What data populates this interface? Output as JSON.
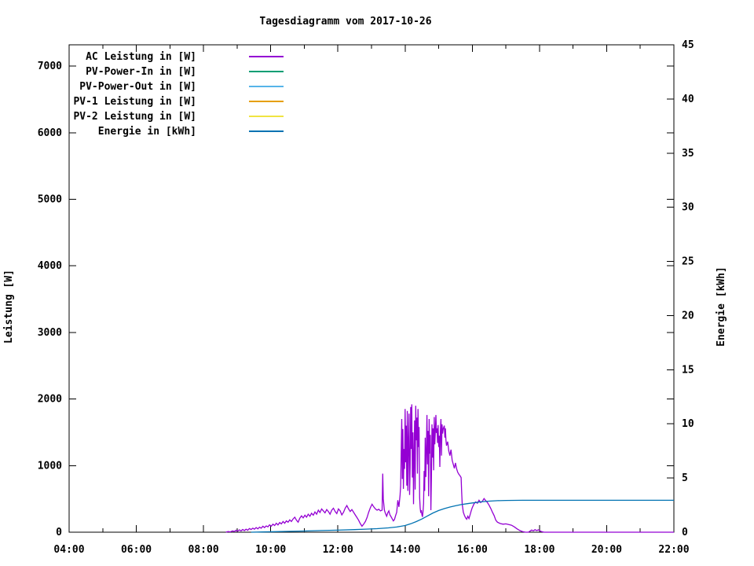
{
  "chart_data": {
    "type": "line",
    "title": "Tagesdiagramm vom 2017-10-26",
    "background_color": "#ffffff",
    "axis_color": "#000000",
    "grid": "off",
    "legend_position": "top-left-inside",
    "x_axis": {
      "unit": "time",
      "min_minutes": 240,
      "max_minutes": 1320,
      "major_step_minutes": 120,
      "minor_step_minutes": 60,
      "labels": [
        "04:00",
        "06:00",
        "08:00",
        "10:00",
        "12:00",
        "14:00",
        "16:00",
        "18:00",
        "20:00",
        "22:00"
      ]
    },
    "y_axis": {
      "label": "Leistung [W]",
      "min": 0,
      "max": 7320,
      "ticks": [
        0,
        1000,
        2000,
        3000,
        4000,
        5000,
        6000,
        7000
      ]
    },
    "y2_axis": {
      "label": "Energie [kWh]",
      "min": 0,
      "max": 45,
      "ticks": [
        0,
        5,
        10,
        15,
        20,
        25,
        30,
        35,
        40,
        45
      ]
    },
    "series": [
      {
        "name": "ac-leistung",
        "label": "AC Leistung in [W]",
        "color": "#9400d3",
        "axis": "y1",
        "points": [
          [
            520,
            0
          ],
          [
            524,
            10
          ],
          [
            528,
            5
          ],
          [
            532,
            20
          ],
          [
            535,
            10
          ],
          [
            538,
            30
          ],
          [
            541,
            15
          ],
          [
            544,
            35
          ],
          [
            547,
            20
          ],
          [
            550,
            40
          ],
          [
            553,
            25
          ],
          [
            556,
            45
          ],
          [
            559,
            30
          ],
          [
            562,
            55
          ],
          [
            565,
            40
          ],
          [
            568,
            60
          ],
          [
            571,
            45
          ],
          [
            574,
            70
          ],
          [
            577,
            50
          ],
          [
            580,
            75
          ],
          [
            583,
            60
          ],
          [
            586,
            90
          ],
          [
            589,
            70
          ],
          [
            592,
            95
          ],
          [
            595,
            80
          ],
          [
            598,
            110
          ],
          [
            601,
            90
          ],
          [
            604,
            120
          ],
          [
            607,
            100
          ],
          [
            610,
            135
          ],
          [
            613,
            110
          ],
          [
            616,
            145
          ],
          [
            619,
            125
          ],
          [
            622,
            160
          ],
          [
            625,
            135
          ],
          [
            628,
            170
          ],
          [
            631,
            150
          ],
          [
            634,
            185
          ],
          [
            637,
            160
          ],
          [
            640,
            200
          ],
          [
            643,
            225
          ],
          [
            646,
            180
          ],
          [
            649,
            150
          ],
          [
            652,
            210
          ],
          [
            655,
            245
          ],
          [
            658,
            215
          ],
          [
            661,
            255
          ],
          [
            664,
            225
          ],
          [
            667,
            270
          ],
          [
            670,
            240
          ],
          [
            673,
            285
          ],
          [
            676,
            255
          ],
          [
            679,
            305
          ],
          [
            682,
            270
          ],
          [
            685,
            330
          ],
          [
            688,
            295
          ],
          [
            691,
            350
          ],
          [
            694,
            320
          ],
          [
            697,
            290
          ],
          [
            700,
            340
          ],
          [
            703,
            310
          ],
          [
            706,
            270
          ],
          [
            709,
            330
          ],
          [
            712,
            360
          ],
          [
            715,
            310
          ],
          [
            718,
            280
          ],
          [
            721,
            350
          ],
          [
            724,
            320
          ],
          [
            727,
            260
          ],
          [
            730,
            300
          ],
          [
            733,
            360
          ],
          [
            736,
            400
          ],
          [
            739,
            350
          ],
          [
            742,
            310
          ],
          [
            745,
            340
          ],
          [
            748,
            300
          ],
          [
            751,
            260
          ],
          [
            754,
            220
          ],
          [
            757,
            180
          ],
          [
            760,
            130
          ],
          [
            763,
            90
          ],
          [
            766,
            120
          ],
          [
            769,
            160
          ],
          [
            772,
            220
          ],
          [
            775,
            300
          ],
          [
            778,
            370
          ],
          [
            781,
            420
          ],
          [
            784,
            380
          ],
          [
            787,
            350
          ],
          [
            790,
            330
          ],
          [
            793,
            345
          ],
          [
            796,
            320
          ],
          [
            799,
            330
          ],
          [
            800,
            880
          ],
          [
            801,
            500
          ],
          [
            803,
            330
          ],
          [
            805,
            280
          ],
          [
            807,
            240
          ],
          [
            809,
            290
          ],
          [
            811,
            320
          ],
          [
            813,
            260
          ],
          [
            815,
            230
          ],
          [
            817,
            200
          ],
          [
            819,
            170
          ],
          [
            821,
            190
          ],
          [
            823,
            250
          ],
          [
            825,
            300
          ],
          [
            827,
            480
          ],
          [
            829,
            380
          ],
          [
            831,
            560
          ],
          [
            832,
            700
          ],
          [
            833,
            1200
          ],
          [
            834,
            1700
          ],
          [
            835,
            800
          ],
          [
            836,
            1550
          ],
          [
            837,
            650
          ],
          [
            838,
            1250
          ],
          [
            839,
            950
          ],
          [
            840,
            1850
          ],
          [
            841,
            1050
          ],
          [
            842,
            1600
          ],
          [
            843,
            700
          ],
          [
            844,
            1820
          ],
          [
            845,
            620
          ],
          [
            846,
            1400
          ],
          [
            847,
            1780
          ],
          [
            848,
            560
          ],
          [
            849,
            980
          ],
          [
            850,
            1880
          ],
          [
            851,
            1250
          ],
          [
            852,
            1920
          ],
          [
            853,
            820
          ],
          [
            854,
            1500
          ],
          [
            855,
            420
          ],
          [
            856,
            1150
          ],
          [
            857,
            1680
          ],
          [
            858,
            640
          ],
          [
            859,
            1900
          ],
          [
            860,
            1380
          ],
          [
            861,
            1720
          ],
          [
            862,
            880
          ],
          [
            863,
            1850
          ],
          [
            864,
            1280
          ],
          [
            865,
            1580
          ],
          [
            866,
            520
          ],
          [
            867,
            360
          ],
          [
            868,
            290
          ],
          [
            869,
            330
          ],
          [
            870,
            260
          ],
          [
            871,
            230
          ],
          [
            872,
            310
          ],
          [
            873,
            430
          ],
          [
            874,
            920
          ],
          [
            875,
            620
          ],
          [
            876,
            1420
          ],
          [
            877,
            830
          ],
          [
            878,
            1230
          ],
          [
            879,
            1760
          ],
          [
            880,
            1020
          ],
          [
            881,
            1520
          ],
          [
            882,
            540
          ],
          [
            883,
            1700
          ],
          [
            884,
            1180
          ],
          [
            885,
            1460
          ],
          [
            886,
            330
          ],
          [
            887,
            820
          ],
          [
            888,
            1620
          ],
          [
            889,
            1120
          ],
          [
            890,
            1560
          ],
          [
            891,
            930
          ],
          [
            892,
            1730
          ],
          [
            893,
            1320
          ],
          [
            894,
            1510
          ],
          [
            895,
            1760
          ],
          [
            896,
            1490
          ],
          [
            897,
            1560
          ],
          [
            898,
            1340
          ],
          [
            899,
            1610
          ],
          [
            900,
            1280
          ],
          [
            901,
            1450
          ],
          [
            902,
            980
          ],
          [
            903,
            1520
          ],
          [
            904,
            1700
          ],
          [
            905,
            1150
          ],
          [
            906,
            1620
          ],
          [
            907,
            1480
          ],
          [
            908,
            1550
          ],
          [
            910,
            1600
          ],
          [
            911,
            1420
          ],
          [
            912,
            1560
          ],
          [
            913,
            1380
          ],
          [
            914,
            1300
          ],
          [
            916,
            1360
          ],
          [
            918,
            1220
          ],
          [
            920,
            1150
          ],
          [
            922,
            1240
          ],
          [
            924,
            1080
          ],
          [
            926,
            1020
          ],
          [
            928,
            960
          ],
          [
            930,
            1040
          ],
          [
            932,
            950
          ],
          [
            934,
            900
          ],
          [
            936,
            870
          ],
          [
            938,
            850
          ],
          [
            940,
            820
          ],
          [
            941,
            600
          ],
          [
            942,
            420
          ],
          [
            944,
            300
          ],
          [
            946,
            250
          ],
          [
            948,
            215
          ],
          [
            950,
            195
          ],
          [
            952,
            240
          ],
          [
            954,
            205
          ],
          [
            956,
            260
          ],
          [
            958,
            320
          ],
          [
            960,
            370
          ],
          [
            963,
            425
          ],
          [
            966,
            455
          ],
          [
            969,
            435
          ],
          [
            972,
            480
          ],
          [
            975,
            445
          ],
          [
            978,
            465
          ],
          [
            981,
            505
          ],
          [
            984,
            475
          ],
          [
            987,
            445
          ],
          [
            990,
            405
          ],
          [
            993,
            355
          ],
          [
            996,
            300
          ],
          [
            999,
            250
          ],
          [
            1002,
            180
          ],
          [
            1005,
            150
          ],
          [
            1010,
            130
          ],
          [
            1015,
            120
          ],
          [
            1020,
            125
          ],
          [
            1025,
            115
          ],
          [
            1030,
            105
          ],
          [
            1035,
            80
          ],
          [
            1040,
            50
          ],
          [
            1045,
            25
          ],
          [
            1050,
            8
          ],
          [
            1055,
            0
          ],
          [
            1060,
            0
          ],
          [
            1063,
            15
          ],
          [
            1066,
            32
          ],
          [
            1069,
            20
          ],
          [
            1072,
            38
          ],
          [
            1075,
            25
          ],
          [
            1078,
            35
          ],
          [
            1081,
            20
          ],
          [
            1084,
            8
          ],
          [
            1088,
            0
          ],
          [
            1320,
            0
          ]
        ]
      },
      {
        "name": "pv-power-in",
        "label": "PV-Power-In in [W]",
        "color": "#009e73",
        "axis": "y1",
        "points": []
      },
      {
        "name": "pv-power-out",
        "label": "PV-Power-Out in [W]",
        "color": "#56b4e9",
        "axis": "y1",
        "points": []
      },
      {
        "name": "pv-1-leistung",
        "label": "PV-1 Leistung in [W]",
        "color": "#e69f00",
        "axis": "y1",
        "points": []
      },
      {
        "name": "pv-2-leistung",
        "label": "PV-2 Leistung in [W]",
        "color": "#f0e442",
        "axis": "y1",
        "points": []
      },
      {
        "name": "energie",
        "label": "Energie in [kWh]",
        "color": "#0072b2",
        "axis": "y2",
        "points": [
          [
            565,
            0
          ],
          [
            585,
            0.02
          ],
          [
            610,
            0.05
          ],
          [
            635,
            0.08
          ],
          [
            660,
            0.11
          ],
          [
            690,
            0.15
          ],
          [
            720,
            0.19
          ],
          [
            750,
            0.24
          ],
          [
            770,
            0.28
          ],
          [
            790,
            0.33
          ],
          [
            810,
            0.4
          ],
          [
            825,
            0.48
          ],
          [
            840,
            0.62
          ],
          [
            850,
            0.78
          ],
          [
            860,
            0.98
          ],
          [
            870,
            1.22
          ],
          [
            880,
            1.5
          ],
          [
            890,
            1.78
          ],
          [
            900,
            2.0
          ],
          [
            910,
            2.18
          ],
          [
            920,
            2.32
          ],
          [
            930,
            2.44
          ],
          [
            940,
            2.55
          ],
          [
            950,
            2.63
          ],
          [
            960,
            2.7
          ],
          [
            975,
            2.8
          ],
          [
            990,
            2.87
          ],
          [
            1005,
            2.91
          ],
          [
            1020,
            2.93
          ],
          [
            1050,
            2.95
          ],
          [
            1320,
            2.95
          ]
        ]
      }
    ]
  }
}
